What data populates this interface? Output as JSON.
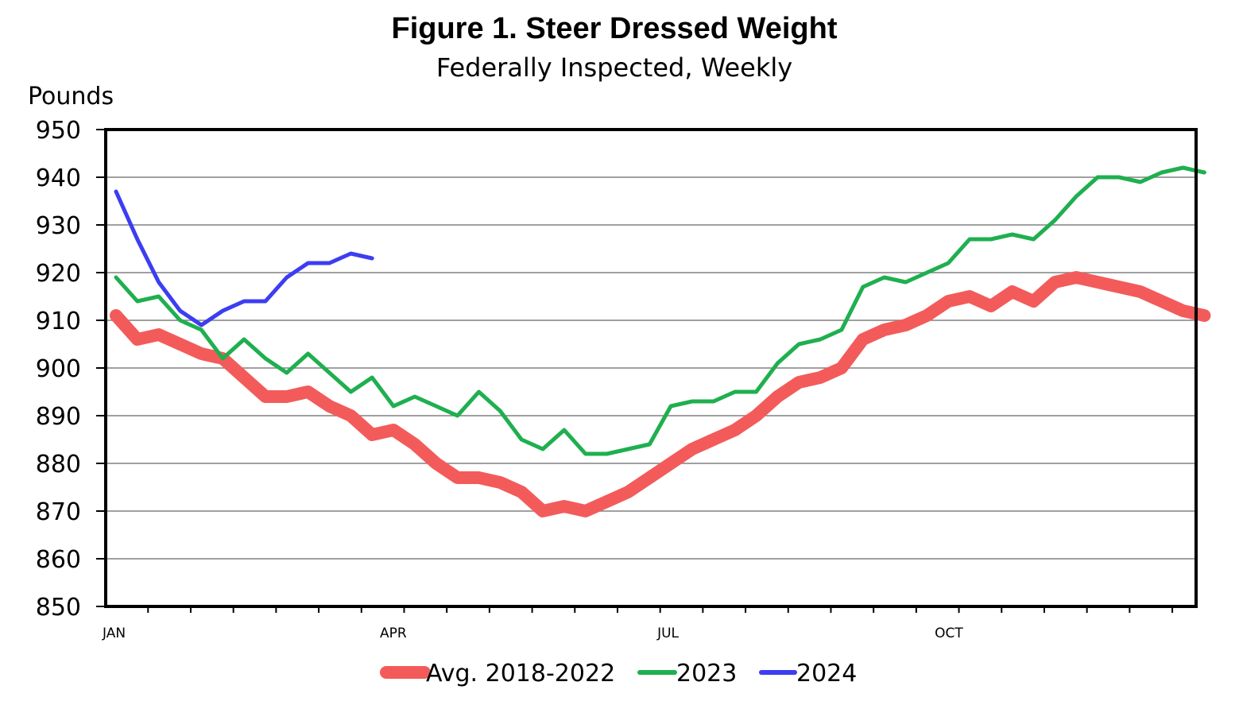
{
  "chart_data": {
    "type": "line",
    "title": "Figure 1.  Steer Dressed Weight",
    "subtitle": "Federally Inspected, Weekly",
    "ylabel": "Pounds",
    "xlabel": "",
    "ylim": [
      850,
      950
    ],
    "yticks": [
      850,
      860,
      870,
      880,
      890,
      900,
      910,
      920,
      930,
      940,
      950
    ],
    "xlim": [
      1,
      53
    ],
    "xtick_labels": [
      {
        "label": "JAN",
        "week": 1
      },
      {
        "label": "APR",
        "week": 14
      },
      {
        "label": "JUL",
        "week": 27
      },
      {
        "label": "OCT",
        "week": 40
      }
    ],
    "grid": true,
    "legend_position": "bottom",
    "series": [
      {
        "name": "Avg. 2018-2022",
        "color": "#F35B5B",
        "values": [
          911,
          906,
          907,
          905,
          903,
          902,
          898,
          894,
          894,
          895,
          892,
          890,
          886,
          887,
          884,
          880,
          877,
          877,
          876,
          874,
          870,
          871,
          870,
          872,
          874,
          877,
          880,
          883,
          885,
          887,
          890,
          894,
          897,
          898,
          900,
          906,
          908,
          909,
          911,
          914,
          915,
          913,
          916,
          914,
          918,
          919,
          918,
          917,
          916,
          914,
          912,
          911
        ]
      },
      {
        "name": "2023",
        "color": "#1FAF4F",
        "values": [
          919,
          914,
          915,
          910,
          908,
          902,
          906,
          902,
          899,
          903,
          899,
          895,
          898,
          892,
          894,
          892,
          890,
          895,
          891,
          885,
          883,
          887,
          882,
          882,
          883,
          884,
          892,
          893,
          893,
          895,
          895,
          901,
          905,
          906,
          908,
          917,
          919,
          918,
          920,
          922,
          927,
          927,
          928,
          927,
          931,
          936,
          940,
          940,
          939,
          941,
          942,
          941
        ]
      },
      {
        "name": "2024",
        "color": "#3D3DF2",
        "values": [
          937,
          927,
          918,
          912,
          909,
          912,
          914,
          914,
          919,
          922,
          922,
          924,
          923
        ]
      }
    ]
  }
}
